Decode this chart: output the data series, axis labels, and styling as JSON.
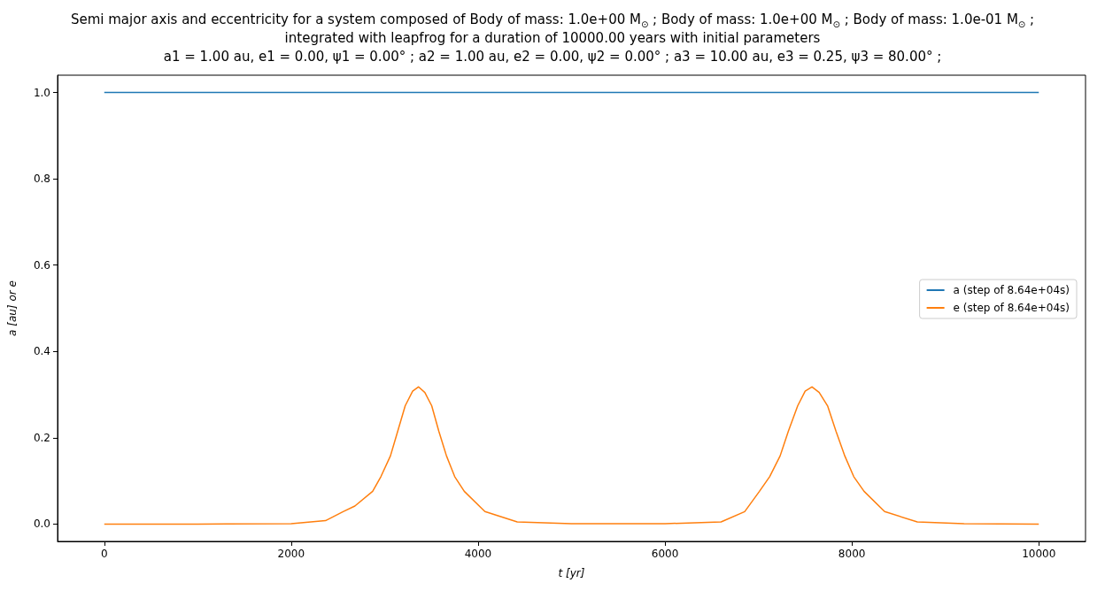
{
  "chart_data": {
    "type": "line",
    "title": "Semi major axis and eccentricity for a system composed of Body of mass: 1.0e+00 M$_{⊙}$ ; Body of mass: 1.0e+00 M$_{⊙}$ ; Body of mass: 1.0e-01 M$_{⊙}$ ;\nintegrated with leapfrog for a duration of 10000.00 years with initial parameters\na1 = 1.00 au, e1 = 0.00, ψ1 = 0.00° ; a2 = 1.00 au, e2 = 0.00, ψ2 = 0.00° ; a3 = 10.00 au, e3 = 0.25, ψ3 = 80.00° ;",
    "xlabel": "t [yr]",
    "ylabel": "a [au] or e",
    "series": [
      {
        "name": "a (step of 8.64e+04s)",
        "color": "#1f77b4",
        "x": [
          0,
          2500,
          5000,
          7500,
          10000
        ],
        "values": [
          1.0,
          1.0,
          1.0,
          1.0,
          1.0
        ]
      },
      {
        "name": "e (step of 8.64e+04s)",
        "color": "#ff7f0e",
        "x": [
          0,
          1000,
          2000,
          2367,
          2556,
          2682,
          2872,
          2960,
          3062,
          3140,
          3220,
          3300,
          3362,
          3430,
          3504,
          3580,
          3662,
          3750,
          3852,
          4073,
          4419,
          5000,
          6000,
          6600,
          6853,
          7011,
          7120,
          7232,
          7320,
          7420,
          7500,
          7573,
          7650,
          7740,
          7830,
          7924,
          8020,
          8130,
          8350,
          8700,
          9200,
          10000
        ],
        "values": [
          0.0,
          0.0,
          0.001,
          0.008,
          0.029,
          0.042,
          0.076,
          0.11,
          0.158,
          0.215,
          0.274,
          0.308,
          0.318,
          0.305,
          0.274,
          0.215,
          0.158,
          0.11,
          0.076,
          0.029,
          0.005,
          0.001,
          0.001,
          0.005,
          0.029,
          0.076,
          0.11,
          0.158,
          0.215,
          0.274,
          0.308,
          0.318,
          0.305,
          0.274,
          0.215,
          0.158,
          0.11,
          0.076,
          0.029,
          0.005,
          0.001,
          0.0
        ]
      }
    ],
    "xlim": [
      -500,
      10500
    ],
    "xticks": [
      0,
      2000,
      4000,
      6000,
      8000,
      10000
    ],
    "ylim": [
      -0.04,
      1.04
    ],
    "yticks": [
      {
        "value": 0,
        "label": "0.0"
      },
      0.2,
      0.4,
      0.6,
      0.8,
      {
        "value": 1,
        "label": "1.0"
      }
    ],
    "grid": false,
    "legend": "center right",
    "marker": "none",
    "line_style": "solid"
  }
}
